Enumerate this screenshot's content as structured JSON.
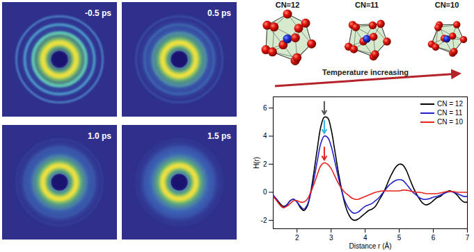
{
  "diffraction_panels": [
    "-0.5 ps",
    "0.5 ps",
    "1.0 ps",
    "1.5 ps"
  ],
  "clusters": [
    {
      "label": "CN=12",
      "cn": 12
    },
    {
      "label": "CN=11",
      "cn": 11
    },
    {
      "label": "CN=10",
      "cn": 10
    }
  ],
  "trend_label": "Temperature increasing",
  "chart_data": {
    "type": "line",
    "x_label": "Distance r (Å)",
    "y_label": "H(r)",
    "xlim": [
      1.3,
      7
    ],
    "ylim": [
      -2.6,
      6.8
    ],
    "xticks": [
      2,
      3,
      4,
      5,
      6,
      7
    ],
    "yticks": [
      -2,
      0,
      2,
      4,
      6
    ],
    "grid": false,
    "legend": "top-right",
    "x": [
      1.3,
      1.4,
      1.5,
      1.6,
      1.7,
      1.8,
      1.9,
      2.0,
      2.1,
      2.2,
      2.3,
      2.4,
      2.5,
      2.6,
      2.7,
      2.8,
      2.9,
      3.0,
      3.1,
      3.2,
      3.3,
      3.4,
      3.5,
      3.6,
      3.7,
      3.8,
      3.9,
      4.0,
      4.1,
      4.2,
      4.3,
      4.4,
      4.5,
      4.6,
      4.7,
      4.8,
      4.9,
      5.0,
      5.1,
      5.2,
      5.3,
      5.4,
      5.5,
      5.6,
      5.7,
      5.8,
      5.9,
      6.0,
      6.1,
      6.2,
      6.3,
      6.4,
      6.5,
      6.6,
      6.7,
      6.8,
      6.9,
      7.0
    ],
    "series": [
      {
        "name": "CN = 12",
        "color": "#000000",
        "values": [
          -0.3,
          -0.5,
          -0.8,
          -1.0,
          -0.9,
          -0.6,
          -0.5,
          -0.7,
          -1.1,
          -1.3,
          -1.0,
          0.0,
          1.5,
          3.2,
          4.7,
          5.35,
          5.3,
          4.5,
          3.1,
          1.6,
          0.3,
          -0.8,
          -1.5,
          -1.9,
          -2.0,
          -1.9,
          -1.7,
          -1.5,
          -1.3,
          -1.2,
          -1.0,
          -0.6,
          -0.2,
          0.3,
          0.9,
          1.4,
          1.8,
          2.0,
          1.95,
          1.6,
          1.0,
          0.4,
          -0.1,
          -0.5,
          -0.8,
          -0.9,
          -0.8,
          -0.6,
          -0.4,
          -0.3,
          -0.1,
          0.05,
          0.1,
          0.0,
          -0.2,
          -0.5,
          -0.7,
          -0.7
        ]
      },
      {
        "name": "CN = 11",
        "color": "#2020cc",
        "values": [
          -0.2,
          -0.5,
          -0.9,
          -1.1,
          -0.9,
          -0.6,
          -0.5,
          -0.7,
          -1.0,
          -1.2,
          -0.9,
          -0.1,
          1.0,
          2.3,
          3.5,
          4.0,
          3.9,
          3.3,
          2.3,
          1.2,
          0.2,
          -0.6,
          -1.1,
          -1.4,
          -1.5,
          -1.4,
          -1.2,
          -1.0,
          -0.9,
          -0.8,
          -0.6,
          -0.4,
          -0.1,
          0.2,
          0.5,
          0.7,
          0.85,
          0.9,
          0.85,
          0.6,
          0.3,
          0.0,
          -0.2,
          -0.4,
          -0.5,
          -0.5,
          -0.45,
          -0.35,
          -0.3,
          -0.2,
          -0.1,
          0.0,
          0.05,
          0.0,
          -0.1,
          -0.2,
          -0.3,
          -0.3
        ]
      },
      {
        "name": "CN = 10",
        "color": "#e8211b",
        "values": [
          -0.3,
          -0.6,
          -0.9,
          -1.1,
          -1.0,
          -0.8,
          -0.6,
          -0.6,
          -0.7,
          -0.7,
          -0.5,
          0.0,
          0.6,
          1.3,
          1.9,
          2.1,
          2.0,
          1.7,
          1.2,
          0.7,
          0.3,
          0.0,
          -0.2,
          -0.4,
          -0.5,
          -0.5,
          -0.4,
          -0.3,
          -0.2,
          -0.1,
          0.0,
          0.05,
          0.1,
          0.1,
          0.1,
          0.1,
          0.1,
          0.1,
          0.15,
          0.15,
          0.1,
          0.05,
          0.0,
          0.0,
          -0.05,
          -0.1,
          -0.1,
          -0.1,
          -0.1,
          -0.05,
          0.0,
          0.05,
          0.05,
          0.05,
          0.0,
          0.0,
          0.0,
          0.0
        ]
      }
    ]
  }
}
